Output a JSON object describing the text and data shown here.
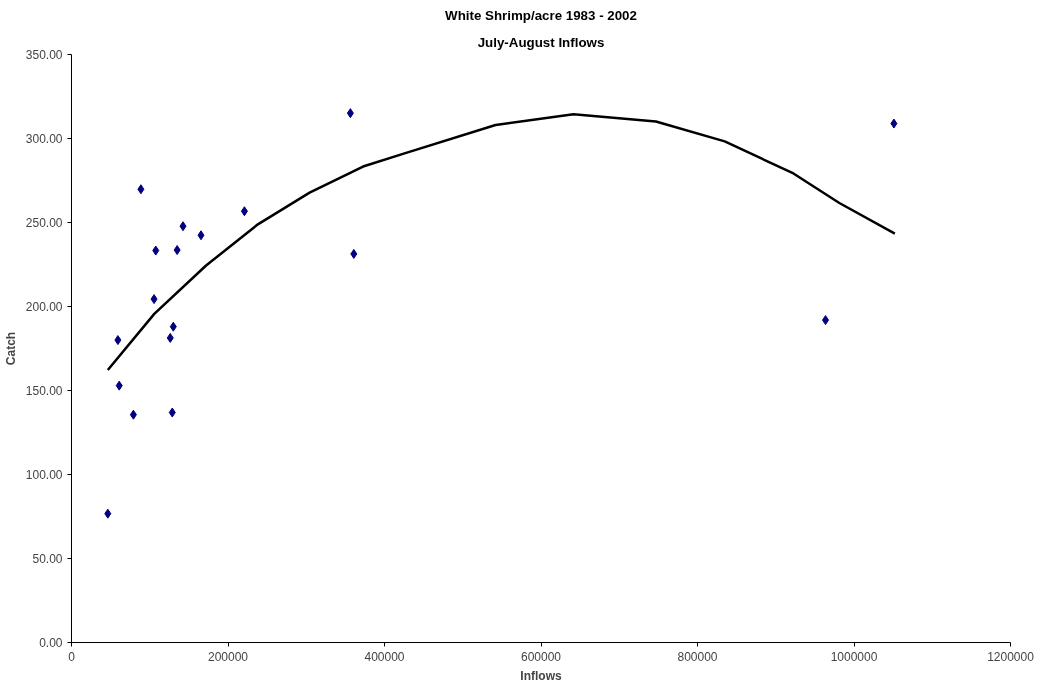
{
  "chart_data": {
    "type": "scatter",
    "title": "White Shrimp/acre 1983 - 2002",
    "subtitle": "July-August Inflows",
    "xlabel": "Inflows",
    "ylabel": "Catch",
    "xlim": [
      0,
      1200000
    ],
    "xticks": [
      0,
      200000,
      400000,
      600000,
      800000,
      1000000,
      1200000
    ],
    "ylim": [
      0,
      350
    ],
    "yticks": [
      {
        "value": 0,
        "label": "0.00"
      },
      {
        "value": 50,
        "label": "50.00"
      },
      {
        "value": 100,
        "label": "100.00"
      },
      {
        "value": 150,
        "label": "150.00"
      },
      {
        "value": 200,
        "label": "200.00"
      },
      {
        "value": 250,
        "label": "250.00"
      },
      {
        "value": 300,
        "label": "300.00"
      },
      {
        "value": 350,
        "label": "350.00"
      }
    ],
    "grid": false,
    "series": [
      {
        "marker": "diamond",
        "color": "#000080",
        "x": [
          46400,
          59300,
          61000,
          79100,
          88700,
          105500,
          107700,
          126200,
          128800,
          130100,
          135000,
          142500,
          165500,
          221000,
          356400,
          360800,
          963600,
          1051000
        ],
        "values": [
          76.7,
          180,
          152.9,
          135.6,
          269.8,
          204.4,
          233.3,
          181.3,
          136.9,
          188,
          233.6,
          247.8,
          242.4,
          256.7,
          315.1,
          231.3,
          191.9,
          308.9
        ]
      },
      {
        "type": "line",
        "marker": "none",
        "line_style": "solid",
        "color": "#000000",
        "x": [
          46400,
          105800,
          172000,
          238200,
          304300,
          372600,
          424600,
          541900,
          641500,
          746900,
          834800,
          922600,
          981300,
          1052200
        ],
        "values": [
          162.2,
          195.6,
          224.4,
          248.9,
          267.8,
          283.3,
          291.0,
          308.0,
          314.5,
          310.1,
          298.3,
          279.2,
          261.6,
          243.4
        ]
      }
    ]
  }
}
